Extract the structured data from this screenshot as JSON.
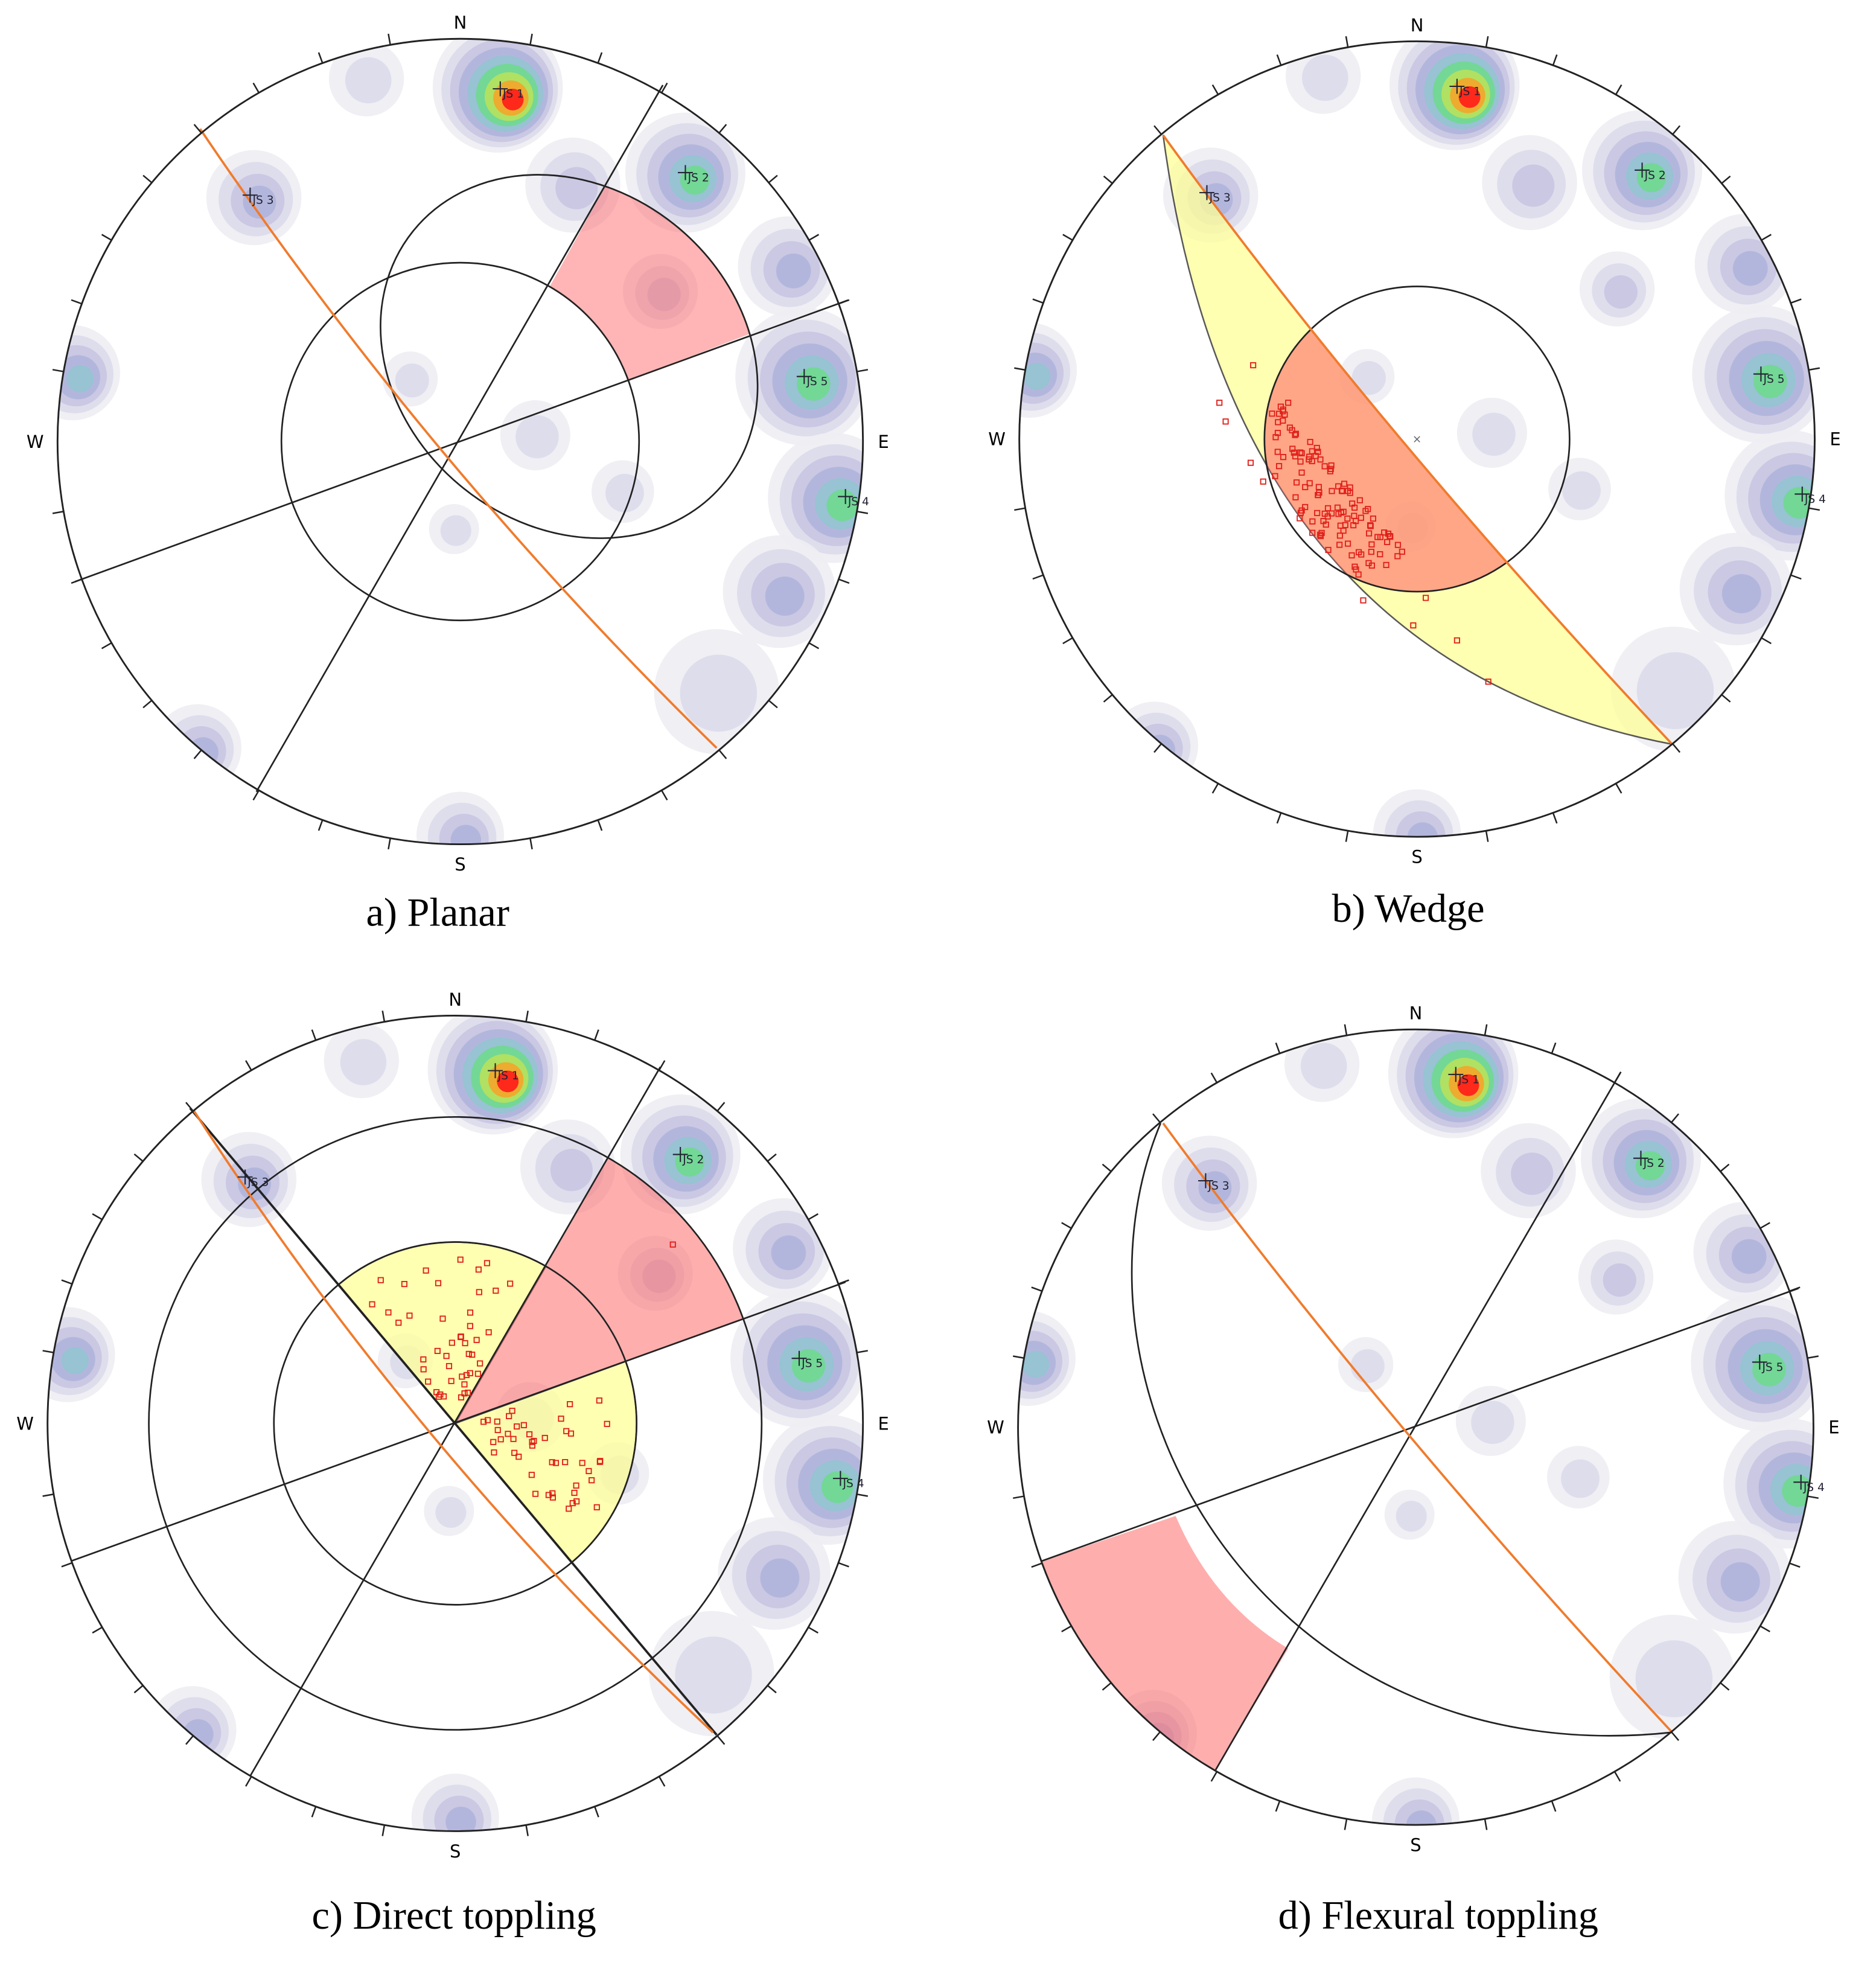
{
  "panels": [
    {
      "caption": "a) Planar",
      "directions": {
        "n": "N",
        "e": "E",
        "s": "S",
        "w": "W"
      },
      "joint_sets": [
        "JS 1",
        "JS 2",
        "JS 3",
        "JS 4",
        "JS 5"
      ]
    },
    {
      "caption": "b) Wedge",
      "directions": {
        "n": "N",
        "e": "E",
        "s": "S",
        "w": "W"
      },
      "joint_sets": [
        "JS 1",
        "JS 2",
        "JS 3",
        "JS 4",
        "JS 5"
      ]
    },
    {
      "caption": "c) Direct toppling",
      "directions": {
        "n": "N",
        "e": "E",
        "s": "S",
        "w": "W"
      },
      "joint_sets": [
        "JS 1",
        "JS 2",
        "JS 3",
        "JS 4",
        "JS 5"
      ]
    },
    {
      "caption": "d) Flexural toppling",
      "directions": {
        "n": "N",
        "e": "E",
        "s": "S",
        "w": "W"
      },
      "joint_sets": [
        "JS 1",
        "JS 2",
        "JS 3",
        "JS 4",
        "JS 5"
      ]
    }
  ]
}
